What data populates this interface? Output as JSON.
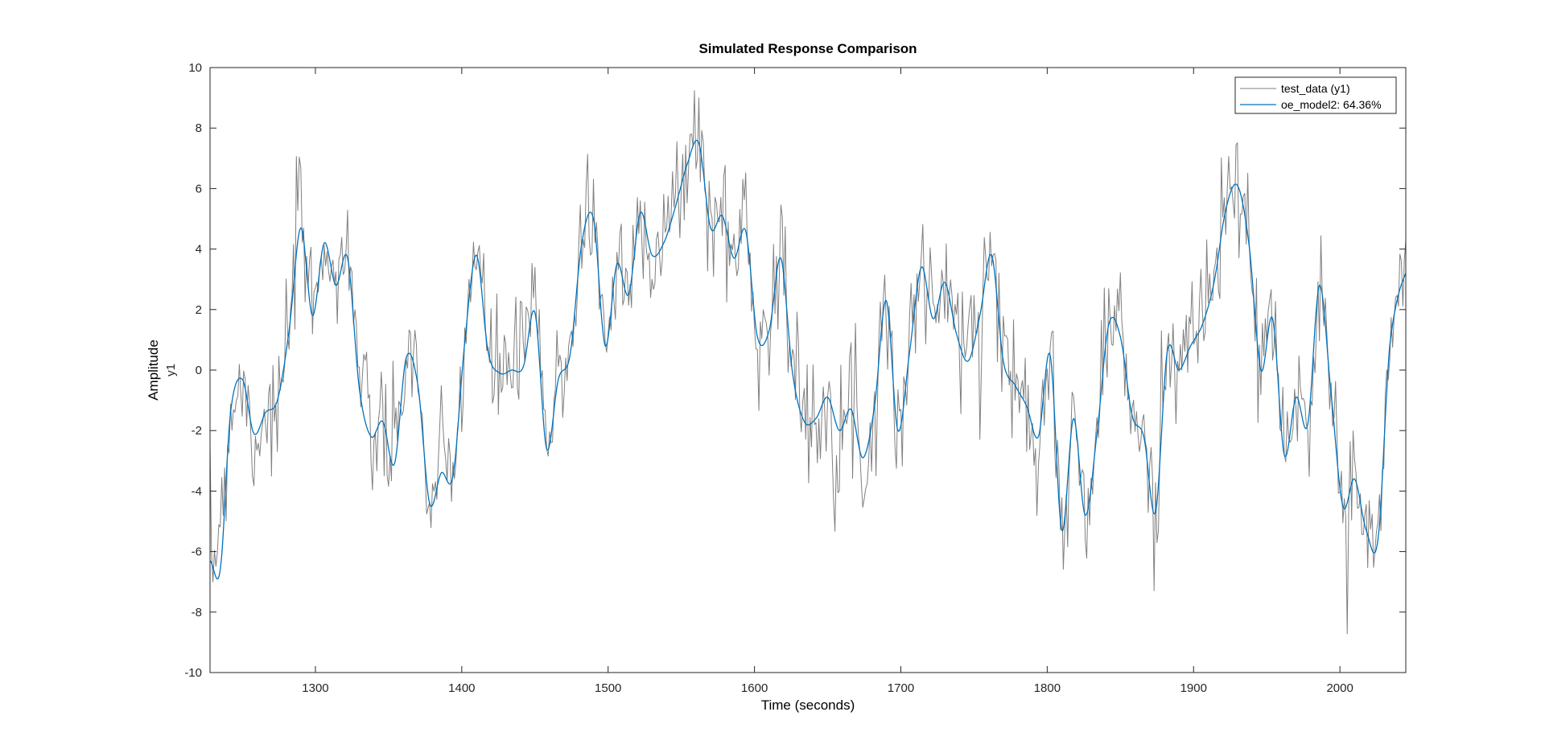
{
  "chart_data": {
    "type": "line",
    "title": "Simulated Response Comparison",
    "xlabel": "Time (seconds)",
    "ylabel": "Amplitude",
    "ylabel_sub": "y1",
    "xlim": [
      1228,
      2045
    ],
    "ylim": [
      -10,
      10
    ],
    "x_ticks": [
      1300,
      1400,
      1500,
      1600,
      1700,
      1800,
      1900,
      2000
    ],
    "y_ticks": [
      -10,
      -8,
      -6,
      -4,
      -2,
      0,
      2,
      4,
      6,
      8,
      10
    ],
    "grid": false,
    "legend_position": "top-right",
    "series": [
      {
        "name": "test_data (y1)",
        "color": "#808080",
        "style": "noisy",
        "x": [
          1228,
          1235,
          1242,
          1250,
          1258,
          1266,
          1274,
          1282,
          1290,
          1298,
          1306,
          1314,
          1322,
          1330,
          1338,
          1346,
          1354,
          1362,
          1370,
          1378,
          1386,
          1394,
          1402,
          1410,
          1418,
          1426,
          1434,
          1442,
          1450,
          1458,
          1466,
          1474,
          1482,
          1490,
          1498,
          1506,
          1514,
          1522,
          1530,
          1538,
          1546,
          1554,
          1562,
          1570,
          1578,
          1586,
          1594,
          1602,
          1610,
          1618,
          1626,
          1634,
          1642,
          1650,
          1658,
          1666,
          1674,
          1682,
          1690,
          1698,
          1706,
          1714,
          1722,
          1730,
          1738,
          1746,
          1754,
          1762,
          1770,
          1778,
          1786,
          1794,
          1802,
          1810,
          1818,
          1826,
          1834,
          1842,
          1850,
          1858,
          1866,
          1874,
          1882,
          1890,
          1898,
          1906,
          1914,
          1922,
          1930,
          1938,
          1946,
          1954,
          1962,
          1970,
          1978,
          1986,
          1994,
          2002,
          2010,
          2018,
          2026,
          2034,
          2045
        ],
        "y": [
          -6.5,
          -4.8,
          -1.5,
          -0.4,
          -2.3,
          -1.2,
          -1.6,
          1.5,
          4.8,
          2.0,
          4.6,
          2.6,
          4.5,
          -0.2,
          -2.2,
          -1.9,
          -3.1,
          0.6,
          -0.6,
          -4.3,
          -3.1,
          -3.6,
          1.1,
          3.9,
          0.5,
          0.1,
          0.3,
          0.4,
          2.3,
          -2.4,
          -0.3,
          1.0,
          4.4,
          5.1,
          1.0,
          3.6,
          2.4,
          5.5,
          3.9,
          4.3,
          5.5,
          6.9,
          7.7,
          4.8,
          5.2,
          3.9,
          4.8,
          1.4,
          1.8,
          3.9,
          0.2,
          -1.5,
          -1.6,
          -0.7,
          -2.1,
          -1.0,
          -3.0,
          -1.4,
          2.4,
          -2.0,
          0.8,
          3.5,
          1.8,
          3.0,
          1.4,
          0.6,
          2.2,
          4.1,
          0.5,
          -0.4,
          -0.9,
          -2.0,
          0.7,
          -5.4,
          -1.8,
          -4.9,
          -1.9,
          1.7,
          1.2,
          -1.6,
          -2.3,
          -4.8,
          1.0,
          0.3,
          1.1,
          1.8,
          3.1,
          5.4,
          5.7,
          4.2,
          0.1,
          1.9,
          -3.0,
          -0.8,
          -1.9,
          2.8,
          -0.6,
          -4.6,
          -3.6,
          -5.4,
          -5.5,
          0.9,
          3.2
        ]
      },
      {
        "name": "oe_model2: 64.36%",
        "color": "#0072BD",
        "style": "smooth",
        "x": [
          1228,
          1235,
          1242,
          1250,
          1258,
          1266,
          1274,
          1282,
          1290,
          1298,
          1306,
          1314,
          1322,
          1330,
          1338,
          1346,
          1354,
          1362,
          1370,
          1378,
          1386,
          1394,
          1402,
          1410,
          1418,
          1426,
          1434,
          1442,
          1450,
          1458,
          1466,
          1474,
          1482,
          1490,
          1498,
          1506,
          1514,
          1522,
          1530,
          1538,
          1546,
          1554,
          1562,
          1570,
          1578,
          1586,
          1594,
          1602,
          1610,
          1618,
          1626,
          1634,
          1642,
          1650,
          1658,
          1666,
          1674,
          1682,
          1690,
          1698,
          1706,
          1714,
          1722,
          1730,
          1738,
          1746,
          1754,
          1762,
          1770,
          1778,
          1786,
          1794,
          1802,
          1810,
          1818,
          1826,
          1834,
          1842,
          1850,
          1858,
          1866,
          1874,
          1882,
          1890,
          1898,
          1906,
          1914,
          1922,
          1930,
          1938,
          1946,
          1954,
          1962,
          1970,
          1978,
          1986,
          1994,
          2002,
          2010,
          2018,
          2026,
          2034,
          2045
        ],
        "y": [
          -6.3,
          -6.6,
          -1.4,
          -0.3,
          -2.1,
          -1.4,
          -1.0,
          1.3,
          4.7,
          1.8,
          4.2,
          2.8,
          3.7,
          -0.6,
          -2.2,
          -1.7,
          -3.1,
          0.4,
          -0.5,
          -4.4,
          -3.4,
          -3.5,
          0.9,
          3.8,
          0.6,
          -0.1,
          0.0,
          0.1,
          1.9,
          -2.6,
          -0.3,
          0.5,
          4.2,
          5.0,
          0.8,
          3.5,
          2.5,
          5.2,
          3.8,
          4.2,
          5.4,
          6.8,
          7.5,
          4.7,
          5.1,
          3.7,
          4.6,
          1.1,
          1.3,
          3.7,
          -0.1,
          -1.7,
          -1.6,
          -0.9,
          -2.0,
          -1.3,
          -2.9,
          -1.2,
          2.3,
          -2.0,
          0.6,
          3.4,
          1.7,
          2.9,
          1.2,
          0.3,
          1.8,
          3.8,
          0.3,
          -0.5,
          -1.2,
          -2.2,
          0.5,
          -5.3,
          -1.6,
          -4.8,
          -2.1,
          1.5,
          1.1,
          -1.5,
          -2.2,
          -4.7,
          0.6,
          0.0,
          0.8,
          1.5,
          2.9,
          5.3,
          6.1,
          4.1,
          0.0,
          1.7,
          -2.8,
          -0.9,
          -1.8,
          2.8,
          -0.8,
          -4.5,
          -3.6,
          -5.3,
          -5.6,
          0.8,
          3.2
        ]
      }
    ]
  }
}
